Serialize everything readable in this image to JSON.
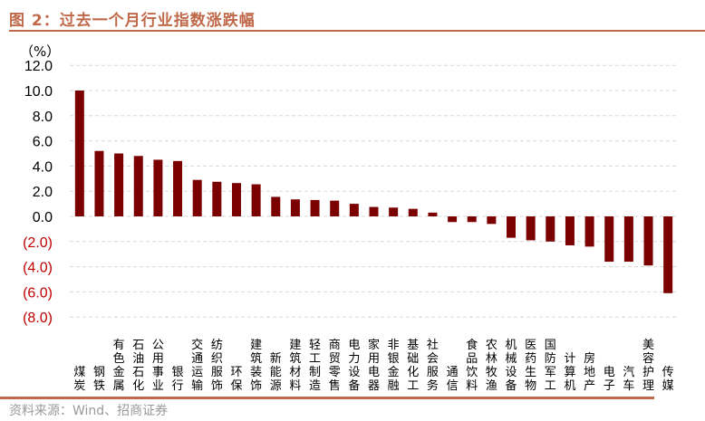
{
  "title": "图 2：过去一个月行业指数涨跌幅",
  "source": "资料来源：Wind、招商证券",
  "chart_data": {
    "type": "bar",
    "unit_label": "（%）",
    "categories": [
      "煤炭",
      "钢铁",
      "有色金属",
      "石油石化",
      "公用事业",
      "银行",
      "交通运输",
      "纺织服饰",
      "环保",
      "建筑装饰",
      "新能源",
      "建筑材料",
      "轻工制造",
      "商贸零售",
      "电力设备",
      "家用电器",
      "非银金融",
      "基础化工",
      "社会服务",
      "通信",
      "食品饮料",
      "农林牧渔",
      "机械设备",
      "医药生物",
      "国防军工",
      "计算机",
      "房地产",
      "电子",
      "汽车",
      "美容护理",
      "传媒"
    ],
    "values": [
      10.0,
      5.2,
      5.0,
      4.8,
      4.5,
      4.4,
      2.9,
      2.75,
      2.65,
      2.55,
      1.55,
      1.35,
      1.3,
      1.25,
      1.0,
      0.75,
      0.7,
      0.6,
      0.3,
      -0.45,
      -0.45,
      -0.6,
      -1.7,
      -1.9,
      -2.0,
      -2.3,
      -2.4,
      -3.6,
      -3.6,
      -3.9,
      -6.1
    ],
    "ylim": [
      -8,
      12
    ],
    "yticks": [
      12,
      10,
      8,
      6,
      4,
      2,
      0,
      -2,
      -4,
      -6,
      -8
    ],
    "ytick_labels": [
      "12.0",
      "10.0",
      "8.0",
      "6.0",
      "4.0",
      "2.0",
      "0.0",
      "(2.0)",
      "(4.0)",
      "(6.0)",
      "(8.0)"
    ],
    "bar_color": "#7b0000",
    "grid": true
  }
}
